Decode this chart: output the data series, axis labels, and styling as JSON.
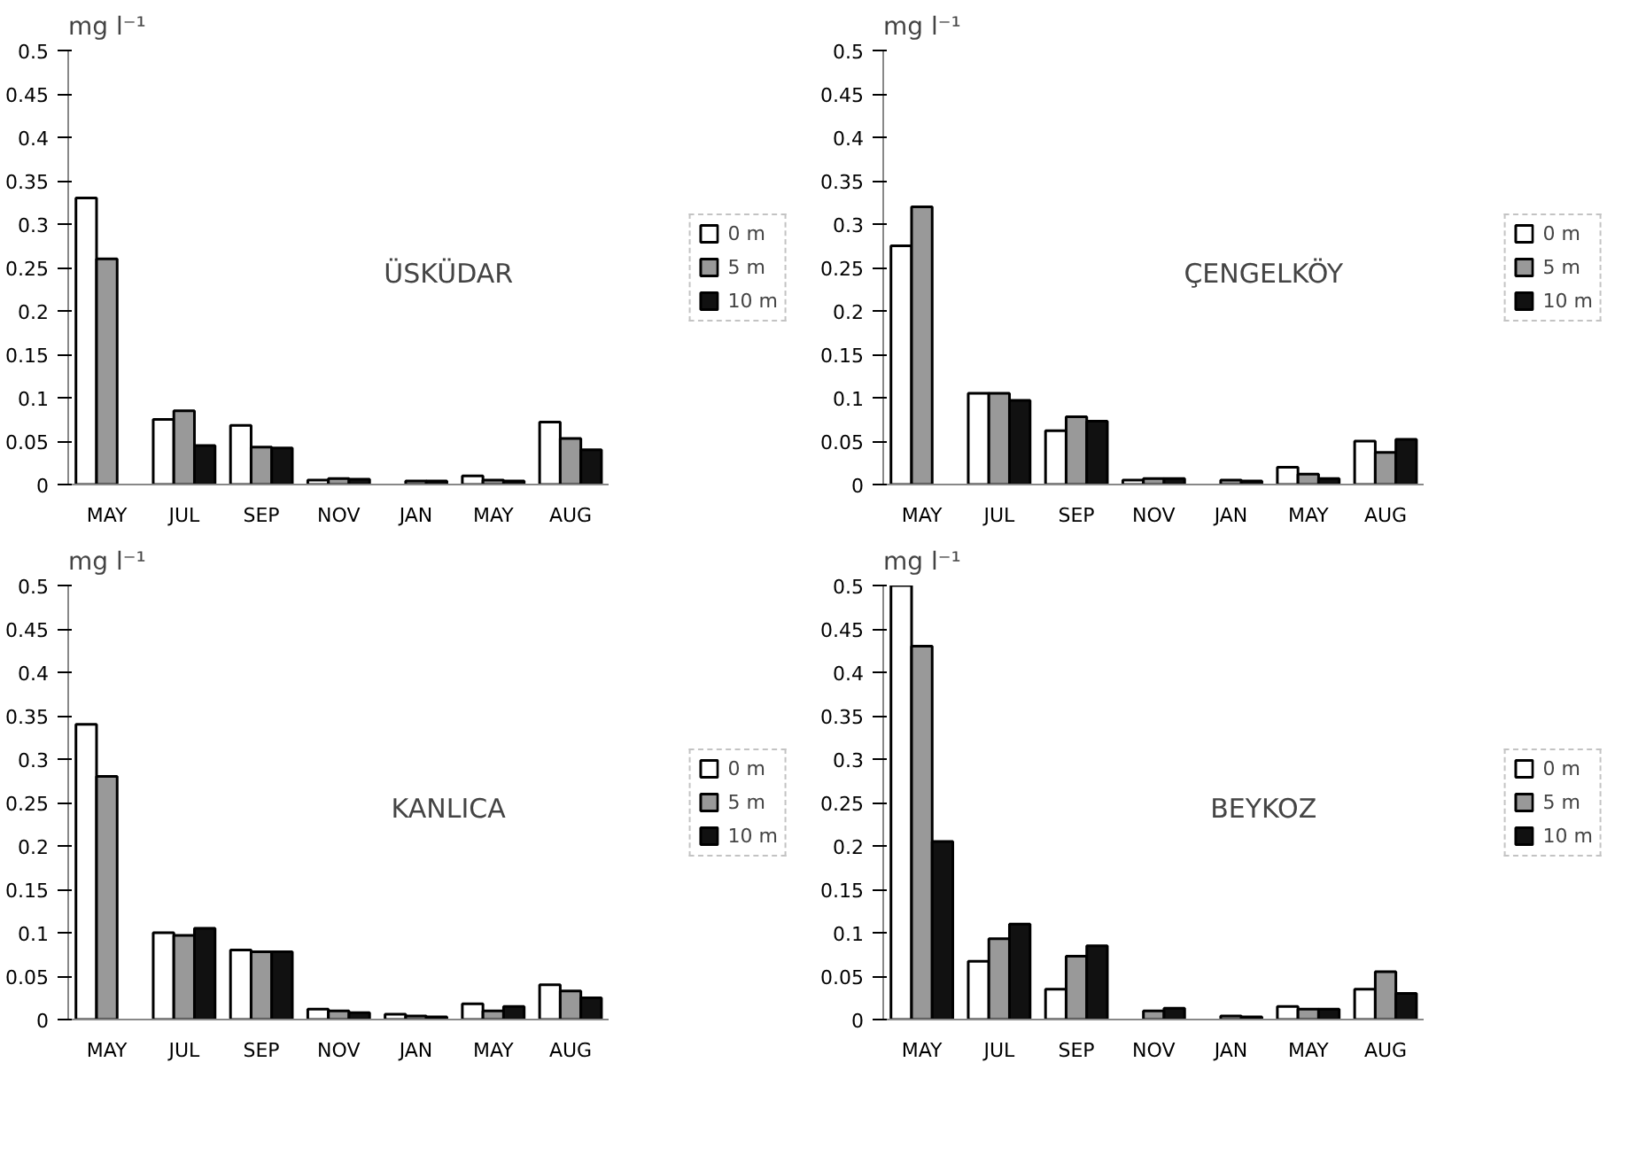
{
  "chart_data": [
    {
      "type": "bar",
      "title": "ÜSKÜDAR",
      "ylabel": "mg l⁻¹",
      "categories": [
        "MAY",
        "JUL",
        "SEP",
        "NOV",
        "JAN",
        "MAY",
        "AUG"
      ],
      "ylim": [
        0,
        0.5
      ],
      "yticks": [
        0,
        0.05,
        0.1,
        0.15,
        0.2,
        0.25,
        0.3,
        0.35,
        0.4,
        0.45,
        0.5
      ],
      "grid": false,
      "legend": "right",
      "series": [
        {
          "name": "0 m",
          "color": "#ffffff",
          "values": [
            0.33,
            0.075,
            0.068,
            0.005,
            null,
            0.01,
            0.072
          ]
        },
        {
          "name": "5 m",
          "color": "#999999",
          "values": [
            0.26,
            0.085,
            0.043,
            0.007,
            0.004,
            0.005,
            0.053
          ]
        },
        {
          "name": "10 m",
          "color": "#111111",
          "values": [
            null,
            0.045,
            0.042,
            0.006,
            0.004,
            0.004,
            0.04
          ]
        }
      ]
    },
    {
      "type": "bar",
      "title": "ÇENGELKÖY",
      "ylabel": "mg l⁻¹",
      "categories": [
        "MAY",
        "JUL",
        "SEP",
        "NOV",
        "JAN",
        "MAY",
        "AUG"
      ],
      "ylim": [
        0,
        0.5
      ],
      "yticks": [
        0,
        0.05,
        0.1,
        0.15,
        0.2,
        0.25,
        0.3,
        0.35,
        0.4,
        0.45,
        0.5
      ],
      "grid": false,
      "legend": "right",
      "series": [
        {
          "name": "0 m",
          "color": "#ffffff",
          "values": [
            0.275,
            0.105,
            0.062,
            0.005,
            null,
            0.02,
            0.05
          ]
        },
        {
          "name": "5 m",
          "color": "#999999",
          "values": [
            0.32,
            0.105,
            0.078,
            0.007,
            0.005,
            0.012,
            0.037
          ]
        },
        {
          "name": "10 m",
          "color": "#111111",
          "values": [
            null,
            0.097,
            0.073,
            0.007,
            0.004,
            0.007,
            0.052
          ]
        }
      ]
    },
    {
      "type": "bar",
      "title": "KANLICA",
      "ylabel": "mg l⁻¹",
      "categories": [
        "MAY",
        "JUL",
        "SEP",
        "NOV",
        "JAN",
        "MAY",
        "AUG"
      ],
      "ylim": [
        0,
        0.5
      ],
      "yticks": [
        0,
        0.05,
        0.1,
        0.15,
        0.2,
        0.25,
        0.3,
        0.35,
        0.4,
        0.45,
        0.5
      ],
      "grid": false,
      "legend": "right",
      "series": [
        {
          "name": "0 m",
          "color": "#ffffff",
          "values": [
            0.34,
            0.1,
            0.08,
            0.012,
            0.006,
            0.018,
            0.04
          ]
        },
        {
          "name": "5 m",
          "color": "#999999",
          "values": [
            0.28,
            0.097,
            0.078,
            0.01,
            0.004,
            0.01,
            0.033
          ]
        },
        {
          "name": "10 m",
          "color": "#111111",
          "values": [
            null,
            0.105,
            0.078,
            0.008,
            0.003,
            0.015,
            0.025
          ]
        }
      ]
    },
    {
      "type": "bar",
      "title": "BEYKOZ",
      "ylabel": "mg l⁻¹",
      "categories": [
        "MAY",
        "JUL",
        "SEP",
        "NOV",
        "JAN",
        "MAY",
        "AUG"
      ],
      "ylim": [
        0,
        0.5
      ],
      "yticks": [
        0,
        0.05,
        0.1,
        0.15,
        0.2,
        0.25,
        0.3,
        0.35,
        0.4,
        0.45,
        0.5
      ],
      "grid": false,
      "legend": "right",
      "series": [
        {
          "name": "0 m",
          "color": "#ffffff",
          "values": [
            0.5,
            0.067,
            0.035,
            null,
            null,
            0.015,
            0.035
          ]
        },
        {
          "name": "5 m",
          "color": "#999999",
          "values": [
            0.43,
            0.093,
            0.073,
            0.01,
            0.004,
            0.012,
            0.055
          ]
        },
        {
          "name": "10 m",
          "color": "#111111",
          "values": [
            0.205,
            0.11,
            0.085,
            0.013,
            0.003,
            0.012,
            0.03
          ]
        }
      ]
    }
  ]
}
